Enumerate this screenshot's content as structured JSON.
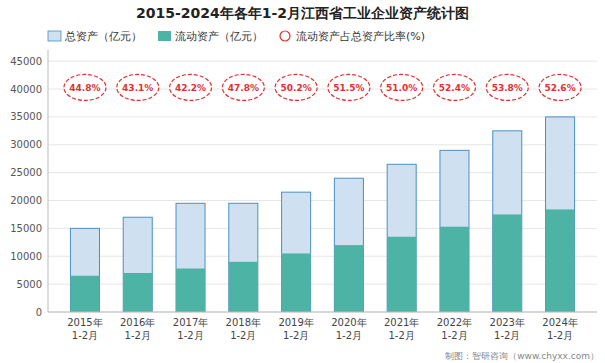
{
  "chart_data": {
    "type": "bar",
    "title": "2015-2024年各年1-2月江西省工业企业资产统计图",
    "categories": [
      "2015年\n1-2月",
      "2016年\n1-2月",
      "2017年\n1-2月",
      "2018年\n1-2月",
      "2019年\n1-2月",
      "2020年\n1-2月",
      "2021年\n1-2月",
      "2022年\n1-2月",
      "2023年\n1-2月",
      "2024年\n1-2月"
    ],
    "series": [
      {
        "name": "总资产（亿元）",
        "color": "#cfe0f0",
        "values": [
          15000,
          17000,
          19500,
          19500,
          21500,
          24000,
          26500,
          29000,
          32500,
          35000
        ]
      },
      {
        "name": "流动资产（亿元）",
        "color": "#4db3a4",
        "values": [
          6500,
          7000,
          7800,
          9000,
          10500,
          12000,
          13500,
          15300,
          17500,
          18400
        ]
      },
      {
        "name": "流动资产占总资产比率(%)",
        "type": "badge",
        "marker": "circle",
        "color": "#e03030",
        "values": [
          44.8,
          43.1,
          42.2,
          47.8,
          50.2,
          51.5,
          51.0,
          52.4,
          53.8,
          52.6
        ],
        "value_labels": [
          "44.8%",
          "43.1%",
          "42.2%",
          "47.8%",
          "50.2%",
          "51.5%",
          "51.0%",
          "52.4%",
          "53.8%",
          "52.6%"
        ]
      }
    ],
    "ylim": [
      0,
      47000
    ],
    "yticks": [
      0,
      5000,
      10000,
      15000,
      20000,
      25000,
      30000,
      35000,
      40000,
      45000
    ],
    "grid": true,
    "legend": "upper left",
    "annotations": [
      "制图：智研咨询（www.chyxx.com）"
    ]
  }
}
